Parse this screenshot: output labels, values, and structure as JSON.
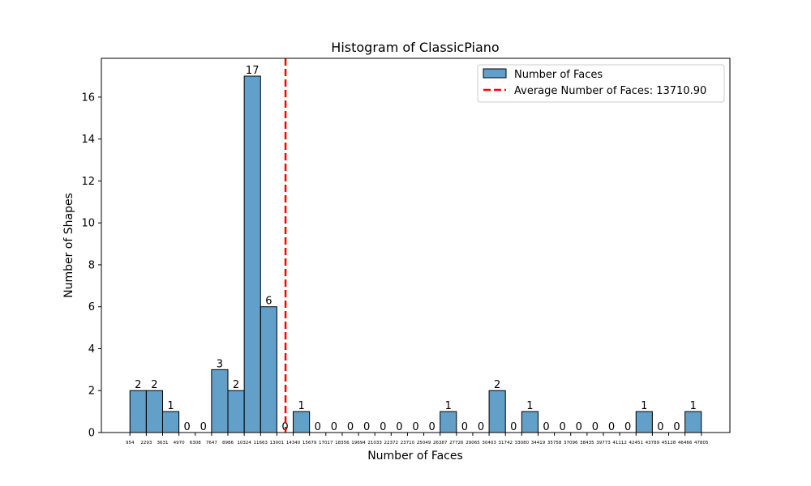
{
  "chart_data": {
    "type": "bar",
    "title": "Histogram of ClassicPiano",
    "xlabel": "Number of Faces",
    "ylabel": "Number of Shapes",
    "ylim": [
      0,
      17.85
    ],
    "yticks": [
      0,
      2,
      4,
      6,
      8,
      10,
      12,
      14,
      16
    ],
    "bin_edges": [
      954,
      2293,
      3631,
      4970,
      6308,
      7647,
      8986,
      10324,
      11663,
      13001,
      14340,
      15679,
      17017,
      18356,
      19694,
      21033,
      22372,
      23710,
      25049,
      26387,
      27726,
      29065,
      30403,
      31742,
      33080,
      34419,
      35758,
      37096,
      38435,
      39773,
      41112,
      42451,
      43789,
      45128,
      46466,
      47805
    ],
    "tick_labels": [
      "954",
      "2293",
      "3631",
      "4970",
      "6308",
      "7647",
      "8986",
      "10324",
      "11663",
      "13001",
      "14340",
      "15679",
      "17017",
      "18356",
      "19694",
      "21033",
      "22372",
      "23710",
      "25049",
      "26387",
      "27726",
      "29065",
      "30403",
      "31742",
      "33080",
      "34419",
      "35758",
      "37096",
      "38435",
      "39773",
      "41112",
      "42451",
      "43789",
      "45128",
      "46466",
      "47805"
    ],
    "values": [
      2,
      2,
      1,
      0,
      0,
      3,
      2,
      17,
      6,
      0,
      1,
      0,
      0,
      0,
      0,
      0,
      0,
      0,
      0,
      1,
      0,
      0,
      2,
      0,
      1,
      0,
      0,
      0,
      0,
      0,
      0,
      1,
      0,
      0,
      1
    ],
    "series_name": "Number of Faces",
    "mean_value": 13710.9,
    "mean_label": "Average Number of Faces: 13710.90",
    "legend_placement": "top-right",
    "grid": false,
    "colors": {
      "bar": "#1f77b4",
      "bar_edge": "#000000",
      "mean_line": "#ff0000"
    }
  }
}
